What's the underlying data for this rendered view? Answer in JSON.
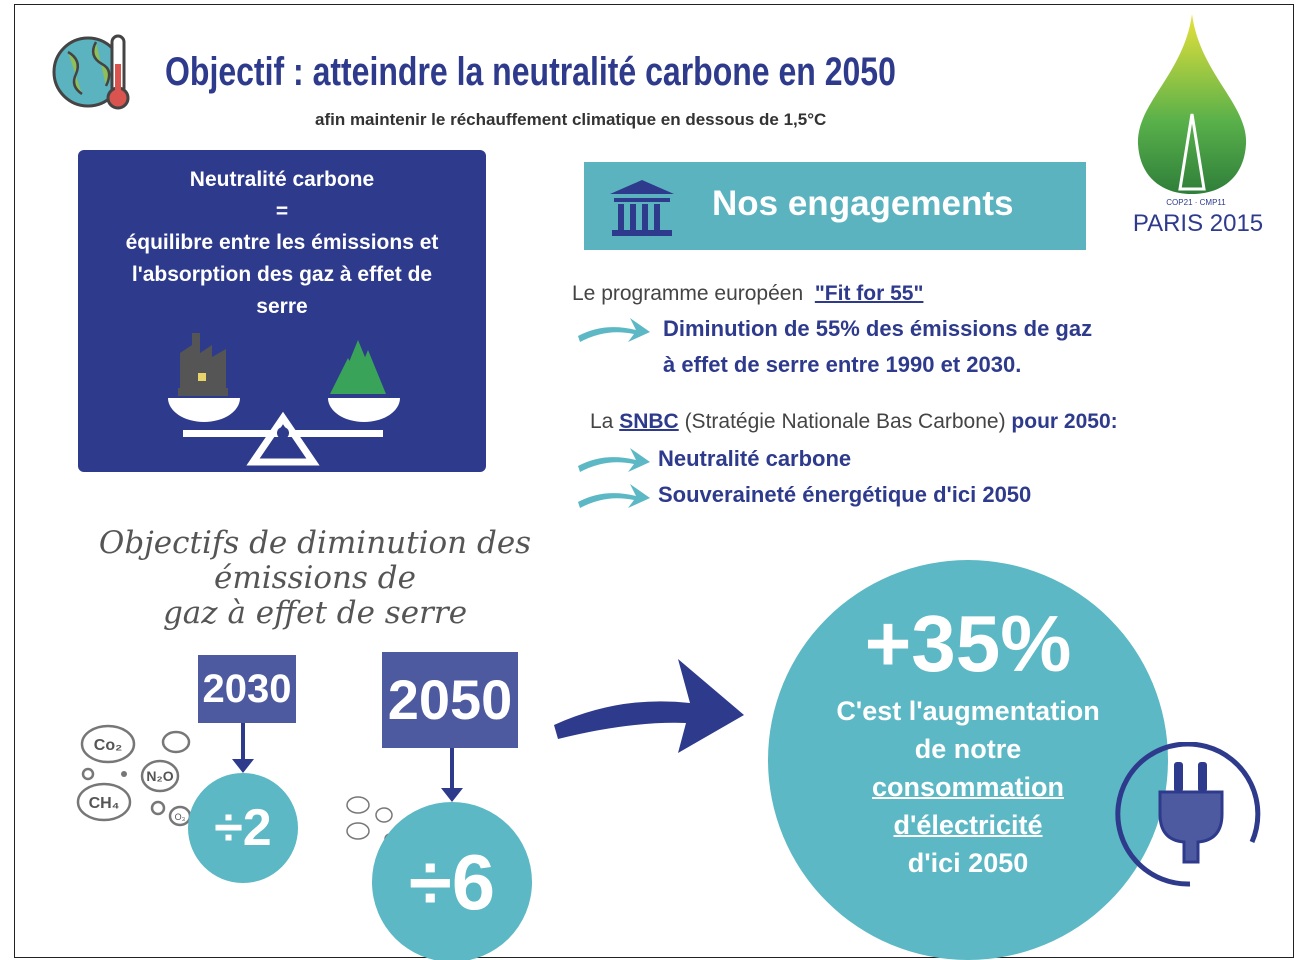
{
  "header": {
    "title": "Objectif : atteindre la neutralité carbone en 2050",
    "subtitle": "afin maintenir le réchauffement climatique en dessous de 1,5°C"
  },
  "definition": {
    "term": "Neutralité carbone",
    "equals": "=",
    "lines": [
      "équilibre entre les émissions et",
      "l'absorption des gaz à effet de",
      "serre"
    ]
  },
  "logo": {
    "event": "COP21 · CMP11",
    "city": "PARIS 2015"
  },
  "engagements": {
    "title": "Nos engagements",
    "fit_for_55": {
      "intro": "Le programme européen",
      "name": "\"Fit for 55\"",
      "result": [
        "Diminution de 55% des émissions de gaz",
        "à effet de serre entre 1990 et 2030."
      ]
    },
    "snbc": {
      "intro": "La",
      "acronym": "SNBC",
      "expansion": "(Stratégie Nationale Bas Carbone)",
      "horizon": "pour 2050:",
      "goals": [
        "Neutralité carbone",
        "Souveraineté énergétique d'ici 2050"
      ]
    }
  },
  "objectives": {
    "heading": [
      "Objectifs de diminution des",
      "émissions de",
      "gaz à effet de serre"
    ],
    "targets": [
      {
        "year": "2030",
        "factor": "÷2"
      },
      {
        "year": "2050",
        "factor": "÷6"
      }
    ],
    "gases": [
      "Co₂",
      "N₂O",
      "CH₄",
      "O₃"
    ]
  },
  "electricity": {
    "figure": "+35%",
    "lines": [
      "C'est l'augmentation",
      "de notre"
    ],
    "underlined": [
      "consommation",
      "d'électricité"
    ],
    "horizon": "d'ici 2050"
  }
}
